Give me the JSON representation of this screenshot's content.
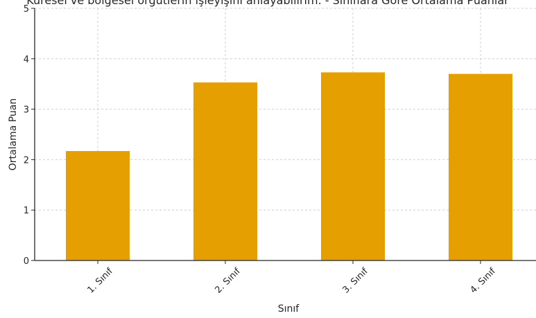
{
  "chart_data": {
    "type": "bar",
    "title": "Küresel ve bölgesel örgütlerin işleyişini anlayabilirim. - Sınıflara Göre Ortalama Puanlar",
    "xlabel": "Sınıf",
    "ylabel": "Ortalama Puan",
    "categories": [
      "1. Sınıf",
      "2. Sınıf",
      "3. Sınıf",
      "4. Sınıf"
    ],
    "values": [
      2.17,
      3.53,
      3.73,
      3.7
    ],
    "ylim": [
      0,
      5
    ],
    "yticks": [
      "0",
      "1",
      "2",
      "3",
      "4",
      "5"
    ],
    "grid": true,
    "bar_color": "#e69f00"
  }
}
